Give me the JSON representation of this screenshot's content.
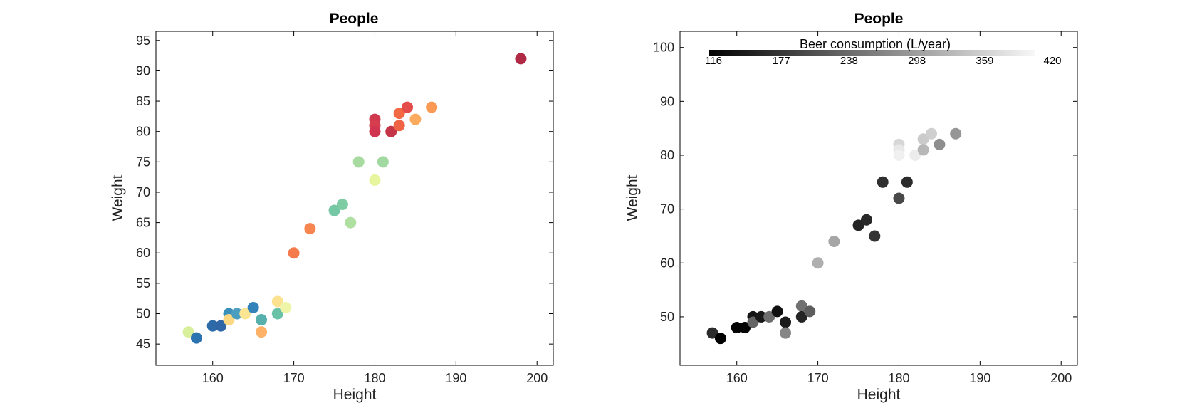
{
  "chart_data": [
    {
      "type": "scatter",
      "title": "People",
      "xlabel": "Height",
      "ylabel": "Weight",
      "xlim": [
        153,
        202
      ],
      "ylim": [
        41.5,
        96.5
      ],
      "xticks": [
        160,
        170,
        180,
        190,
        200
      ],
      "yticks": [
        45,
        50,
        55,
        60,
        65,
        70,
        75,
        80,
        85,
        90,
        95
      ],
      "grid": false,
      "points": [
        {
          "x": 157,
          "y": 47,
          "color": "#d8ef9b"
        },
        {
          "x": 158,
          "y": 46,
          "color": "#2b74b0"
        },
        {
          "x": 160,
          "y": 48,
          "color": "#2d6aa8"
        },
        {
          "x": 161,
          "y": 48,
          "color": "#3066a5"
        },
        {
          "x": 162,
          "y": 50,
          "color": "#3b90bb"
        },
        {
          "x": 162,
          "y": 49,
          "color": "#fdd883"
        },
        {
          "x": 163,
          "y": 50,
          "color": "#4a9ec0"
        },
        {
          "x": 164,
          "y": 50,
          "color": "#fae592"
        },
        {
          "x": 165,
          "y": 51,
          "color": "#3383ba"
        },
        {
          "x": 166,
          "y": 49,
          "color": "#58b0ad"
        },
        {
          "x": 166,
          "y": 47,
          "color": "#fdb268"
        },
        {
          "x": 168,
          "y": 52,
          "color": "#fce18f"
        },
        {
          "x": 168,
          "y": 50,
          "color": "#69c1a6"
        },
        {
          "x": 169,
          "y": 51,
          "color": "#eef5a9"
        },
        {
          "x": 170,
          "y": 60,
          "color": "#f57a4c"
        },
        {
          "x": 172,
          "y": 64,
          "color": "#f78550"
        },
        {
          "x": 175,
          "y": 67,
          "color": "#76c8a5"
        },
        {
          "x": 176,
          "y": 68,
          "color": "#7ecca4"
        },
        {
          "x": 177,
          "y": 65,
          "color": "#b0dfa2"
        },
        {
          "x": 178,
          "y": 75,
          "color": "#a8dba0"
        },
        {
          "x": 180,
          "y": 72,
          "color": "#e8f59f"
        },
        {
          "x": 180,
          "y": 82,
          "color": "#d0394e"
        },
        {
          "x": 180,
          "y": 81,
          "color": "#d63d4f"
        },
        {
          "x": 180,
          "y": 80,
          "color": "#d0364f"
        },
        {
          "x": 181,
          "y": 75,
          "color": "#a2d9a1"
        },
        {
          "x": 182,
          "y": 80,
          "color": "#c43547"
        },
        {
          "x": 183,
          "y": 83,
          "color": "#f26944"
        },
        {
          "x": 183,
          "y": 81,
          "color": "#ee6445"
        },
        {
          "x": 184,
          "y": 84,
          "color": "#e34c4a"
        },
        {
          "x": 185,
          "y": 82,
          "color": "#fbaa5e"
        },
        {
          "x": 187,
          "y": 84,
          "color": "#fa9a55"
        },
        {
          "x": 198,
          "y": 92,
          "color": "#b12a45"
        }
      ]
    },
    {
      "type": "scatter",
      "title": "People",
      "xlabel": "Height",
      "ylabel": "Weight",
      "xlim": [
        153,
        202
      ],
      "ylim": [
        41,
        103
      ],
      "xticks": [
        160,
        170,
        180,
        190,
        200
      ],
      "yticks": [
        50,
        60,
        70,
        80,
        90,
        100
      ],
      "grid": false,
      "colorbar": {
        "label": "Beer consumption (L/year)",
        "ticks": [
          "116",
          "177",
          "238",
          "298",
          "359",
          "420"
        ],
        "placement": "top",
        "min": 116,
        "max": 420
      },
      "points": [
        {
          "x": 157,
          "y": 47,
          "c": 170
        },
        {
          "x": 158,
          "y": 46,
          "c": 116
        },
        {
          "x": 160,
          "y": 48,
          "c": 120
        },
        {
          "x": 161,
          "y": 48,
          "c": 122
        },
        {
          "x": 162,
          "y": 50,
          "c": 140
        },
        {
          "x": 162,
          "y": 49,
          "c": 240
        },
        {
          "x": 163,
          "y": 50,
          "c": 145
        },
        {
          "x": 164,
          "y": 50,
          "c": 250
        },
        {
          "x": 165,
          "y": 51,
          "c": 135
        },
        {
          "x": 166,
          "y": 49,
          "c": 150
        },
        {
          "x": 166,
          "y": 47,
          "c": 280
        },
        {
          "x": 168,
          "y": 52,
          "c": 255
        },
        {
          "x": 168,
          "y": 50,
          "c": 160
        },
        {
          "x": 169,
          "y": 51,
          "c": 230
        },
        {
          "x": 170,
          "y": 60,
          "c": 330
        },
        {
          "x": 172,
          "y": 64,
          "c": 320
        },
        {
          "x": 175,
          "y": 67,
          "c": 160
        },
        {
          "x": 176,
          "y": 68,
          "c": 165
        },
        {
          "x": 177,
          "y": 65,
          "c": 180
        },
        {
          "x": 178,
          "y": 75,
          "c": 175
        },
        {
          "x": 180,
          "y": 72,
          "c": 205
        },
        {
          "x": 180,
          "y": 82,
          "c": 380
        },
        {
          "x": 180,
          "y": 81,
          "c": 400
        },
        {
          "x": 180,
          "y": 80,
          "c": 410
        },
        {
          "x": 181,
          "y": 75,
          "c": 170
        },
        {
          "x": 182,
          "y": 80,
          "c": 405
        },
        {
          "x": 183,
          "y": 83,
          "c": 365
        },
        {
          "x": 183,
          "y": 81,
          "c": 340
        },
        {
          "x": 184,
          "y": 84,
          "c": 370
        },
        {
          "x": 185,
          "y": 82,
          "c": 290
        },
        {
          "x": 187,
          "y": 84,
          "c": 300
        }
      ]
    }
  ]
}
